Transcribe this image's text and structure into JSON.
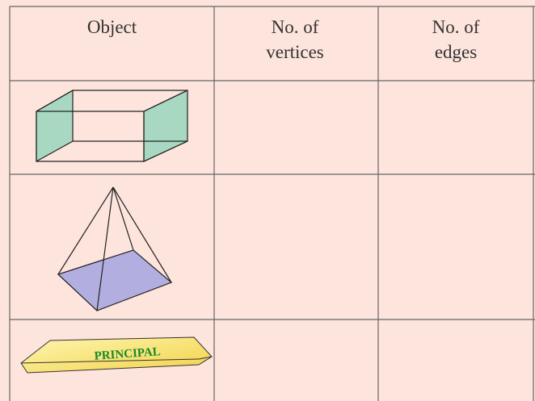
{
  "table": {
    "headers": [
      "Object",
      "No. of vertices",
      "No. of edges"
    ]
  },
  "objects": {
    "prism_label": "PRINCIPAL"
  }
}
